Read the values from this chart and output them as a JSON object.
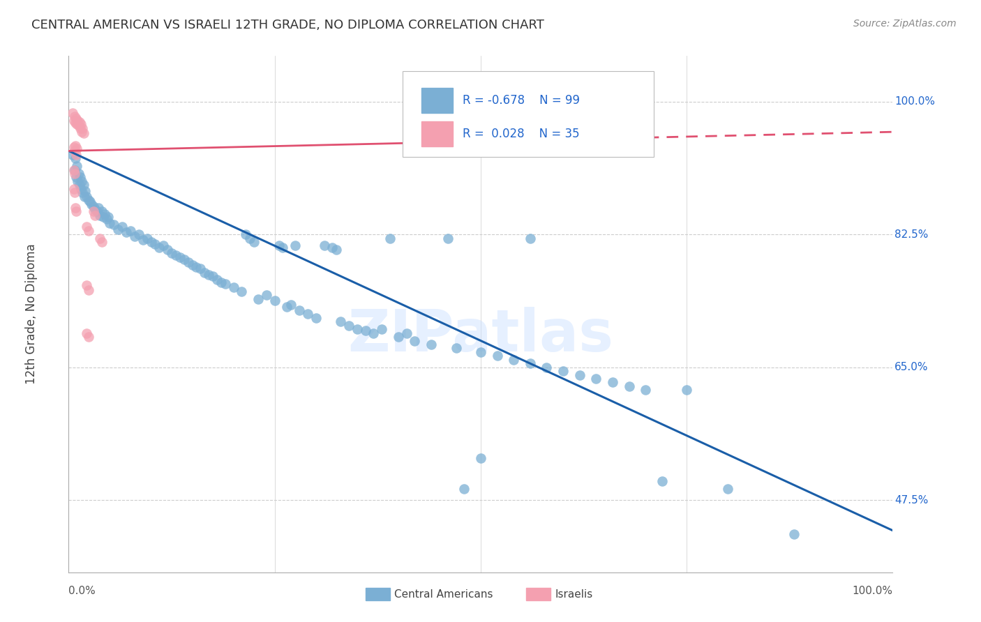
{
  "title": "CENTRAL AMERICAN VS ISRAELI 12TH GRADE, NO DIPLOMA CORRELATION CHART",
  "source": "Source: ZipAtlas.com",
  "ylabel": "12th Grade, No Diploma",
  "yticks": [
    0.475,
    0.65,
    0.825,
    1.0
  ],
  "ytick_labels": [
    "47.5%",
    "65.0%",
    "82.5%",
    "100.0%"
  ],
  "watermark": "ZIPatlas",
  "blue_color": "#7BAFD4",
  "pink_color": "#F4A0B0",
  "blue_line_color": "#1A5EA8",
  "pink_line_color": "#E05070",
  "grid_color": "#CCCCCC",
  "blue_scatter": [
    [
      0.005,
      0.93
    ],
    [
      0.007,
      0.91
    ],
    [
      0.008,
      0.925
    ],
    [
      0.009,
      0.9
    ],
    [
      0.01,
      0.915
    ],
    [
      0.011,
      0.895
    ],
    [
      0.012,
      0.905
    ],
    [
      0.013,
      0.89
    ],
    [
      0.014,
      0.9
    ],
    [
      0.015,
      0.885
    ],
    [
      0.016,
      0.895
    ],
    [
      0.017,
      0.88
    ],
    [
      0.018,
      0.89
    ],
    [
      0.019,
      0.875
    ],
    [
      0.02,
      0.882
    ],
    [
      0.022,
      0.875
    ],
    [
      0.024,
      0.87
    ],
    [
      0.026,
      0.868
    ],
    [
      0.028,
      0.865
    ],
    [
      0.03,
      0.862
    ],
    [
      0.032,
      0.858
    ],
    [
      0.034,
      0.855
    ],
    [
      0.036,
      0.86
    ],
    [
      0.038,
      0.85
    ],
    [
      0.04,
      0.855
    ],
    [
      0.042,
      0.848
    ],
    [
      0.044,
      0.852
    ],
    [
      0.046,
      0.845
    ],
    [
      0.048,
      0.848
    ],
    [
      0.05,
      0.84
    ],
    [
      0.055,
      0.838
    ],
    [
      0.06,
      0.832
    ],
    [
      0.065,
      0.835
    ],
    [
      0.07,
      0.828
    ],
    [
      0.075,
      0.83
    ],
    [
      0.08,
      0.822
    ],
    [
      0.085,
      0.825
    ],
    [
      0.09,
      0.818
    ],
    [
      0.095,
      0.82
    ],
    [
      0.1,
      0.815
    ],
    [
      0.105,
      0.812
    ],
    [
      0.11,
      0.808
    ],
    [
      0.115,
      0.81
    ],
    [
      0.12,
      0.805
    ],
    [
      0.125,
      0.8
    ],
    [
      0.13,
      0.798
    ],
    [
      0.135,
      0.795
    ],
    [
      0.14,
      0.792
    ],
    [
      0.145,
      0.788
    ],
    [
      0.15,
      0.785
    ],
    [
      0.155,
      0.782
    ],
    [
      0.16,
      0.78
    ],
    [
      0.165,
      0.775
    ],
    [
      0.17,
      0.772
    ],
    [
      0.175,
      0.77
    ],
    [
      0.18,
      0.765
    ],
    [
      0.185,
      0.762
    ],
    [
      0.19,
      0.76
    ],
    [
      0.2,
      0.755
    ],
    [
      0.21,
      0.75
    ],
    [
      0.215,
      0.825
    ],
    [
      0.22,
      0.82
    ],
    [
      0.225,
      0.815
    ],
    [
      0.23,
      0.74
    ],
    [
      0.24,
      0.745
    ],
    [
      0.25,
      0.738
    ],
    [
      0.255,
      0.81
    ],
    [
      0.26,
      0.808
    ],
    [
      0.265,
      0.73
    ],
    [
      0.27,
      0.732
    ],
    [
      0.275,
      0.81
    ],
    [
      0.28,
      0.725
    ],
    [
      0.29,
      0.72
    ],
    [
      0.3,
      0.715
    ],
    [
      0.31,
      0.81
    ],
    [
      0.32,
      0.808
    ],
    [
      0.325,
      0.805
    ],
    [
      0.33,
      0.71
    ],
    [
      0.34,
      0.705
    ],
    [
      0.35,
      0.7
    ],
    [
      0.36,
      0.698
    ],
    [
      0.37,
      0.695
    ],
    [
      0.39,
      0.82
    ],
    [
      0.4,
      0.69
    ],
    [
      0.42,
      0.685
    ],
    [
      0.44,
      0.68
    ],
    [
      0.46,
      0.82
    ],
    [
      0.47,
      0.675
    ],
    [
      0.38,
      0.7
    ],
    [
      0.41,
      0.695
    ],
    [
      0.5,
      0.67
    ],
    [
      0.52,
      0.665
    ],
    [
      0.54,
      0.66
    ],
    [
      0.56,
      0.655
    ],
    [
      0.58,
      0.65
    ],
    [
      0.6,
      0.645
    ],
    [
      0.56,
      0.82
    ],
    [
      0.62,
      0.64
    ],
    [
      0.64,
      0.635
    ],
    [
      0.66,
      0.63
    ],
    [
      0.68,
      0.625
    ],
    [
      0.7,
      0.62
    ],
    [
      0.72,
      0.5
    ],
    [
      0.75,
      0.62
    ],
    [
      0.8,
      0.49
    ],
    [
      0.88,
      0.43
    ],
    [
      0.48,
      0.49
    ],
    [
      0.5,
      0.53
    ]
  ],
  "pink_scatter": [
    [
      0.005,
      0.985
    ],
    [
      0.006,
      0.975
    ],
    [
      0.007,
      0.98
    ],
    [
      0.008,
      0.972
    ],
    [
      0.009,
      0.978
    ],
    [
      0.01,
      0.97
    ],
    [
      0.011,
      0.975
    ],
    [
      0.012,
      0.968
    ],
    [
      0.013,
      0.973
    ],
    [
      0.014,
      0.965
    ],
    [
      0.015,
      0.97
    ],
    [
      0.016,
      0.96
    ],
    [
      0.017,
      0.965
    ],
    [
      0.018,
      0.958
    ],
    [
      0.006,
      0.94
    ],
    [
      0.007,
      0.935
    ],
    [
      0.008,
      0.942
    ],
    [
      0.009,
      0.93
    ],
    [
      0.01,
      0.938
    ],
    [
      0.006,
      0.91
    ],
    [
      0.007,
      0.905
    ],
    [
      0.006,
      0.885
    ],
    [
      0.007,
      0.88
    ],
    [
      0.008,
      0.86
    ],
    [
      0.009,
      0.855
    ],
    [
      0.03,
      0.855
    ],
    [
      0.032,
      0.85
    ],
    [
      0.022,
      0.835
    ],
    [
      0.024,
      0.83
    ],
    [
      0.038,
      0.82
    ],
    [
      0.04,
      0.815
    ],
    [
      0.022,
      0.758
    ],
    [
      0.024,
      0.752
    ],
    [
      0.022,
      0.695
    ],
    [
      0.024,
      0.69
    ]
  ],
  "blue_trend": [
    0.0,
    1.0,
    0.935,
    0.435
  ],
  "pink_trend": [
    0.0,
    1.0,
    0.935,
    0.96
  ],
  "xmin": 0.0,
  "xmax": 1.0,
  "ymin": 0.38,
  "ymax": 1.06
}
